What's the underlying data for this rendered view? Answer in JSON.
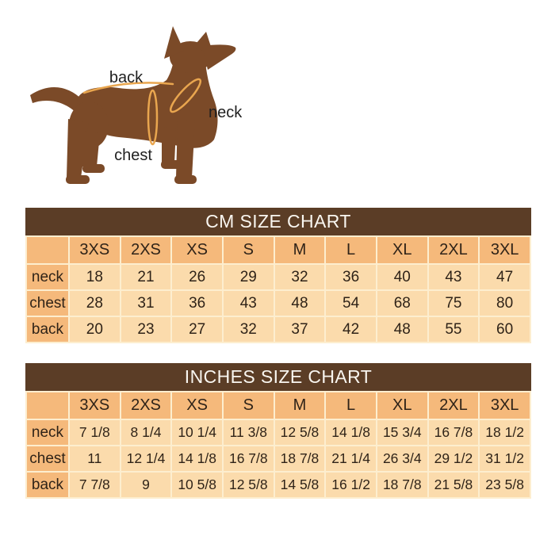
{
  "diagram": {
    "labels": {
      "back": "back",
      "neck": "neck",
      "chest": "chest"
    },
    "dog_color": "#7B4A28",
    "measure_line_color": "#E9A64F",
    "label_text_color": "#1F1F1F"
  },
  "chart_data": [
    {
      "type": "table",
      "title": "CM SIZE CHART",
      "columns": [
        "3XS",
        "2XS",
        "XS",
        "S",
        "M",
        "L",
        "XL",
        "2XL",
        "3XL"
      ],
      "rows": [
        {
          "label": "neck",
          "values": [
            "18",
            "21",
            "26",
            "29",
            "32",
            "36",
            "40",
            "43",
            "47"
          ]
        },
        {
          "label": "chest",
          "values": [
            "28",
            "31",
            "36",
            "43",
            "48",
            "54",
            "68",
            "75",
            "80"
          ]
        },
        {
          "label": "back",
          "values": [
            "20",
            "23",
            "27",
            "32",
            "37",
            "42",
            "48",
            "55",
            "60"
          ]
        }
      ]
    },
    {
      "type": "table",
      "title": "INCHES SIZE CHART",
      "columns": [
        "3XS",
        "2XS",
        "XS",
        "S",
        "M",
        "L",
        "XL",
        "2XL",
        "3XL"
      ],
      "rows": [
        {
          "label": "neck",
          "values": [
            "7 1/8",
            "8 1/4",
            "10 1/4",
            "11 3/8",
            "12 5/8",
            "14 1/8",
            "15 3/4",
            "16 7/8",
            "18 1/2"
          ]
        },
        {
          "label": "chest",
          "values": [
            "11",
            "12 1/4",
            "14 1/8",
            "16 7/8",
            "18 7/8",
            "21 1/4",
            "26 3/4",
            "29 1/2",
            "31 1/2"
          ]
        },
        {
          "label": "back",
          "values": [
            "7 7/8",
            "9",
            "10 5/8",
            "12 5/8",
            "14 5/8",
            "16 1/2",
            "18 7/8",
            "21 5/8",
            "23 5/8"
          ]
        }
      ]
    }
  ],
  "colors": {
    "title_bar_bg": "#5B3D26",
    "title_text": "#F9F6F0",
    "header_cell_bg": "#F5B97B",
    "data_cell_bg": "#FBDBAC",
    "grid_line": "#FDEECF",
    "cell_text": "#2F2318",
    "page_bg": "#FFFFFF"
  }
}
